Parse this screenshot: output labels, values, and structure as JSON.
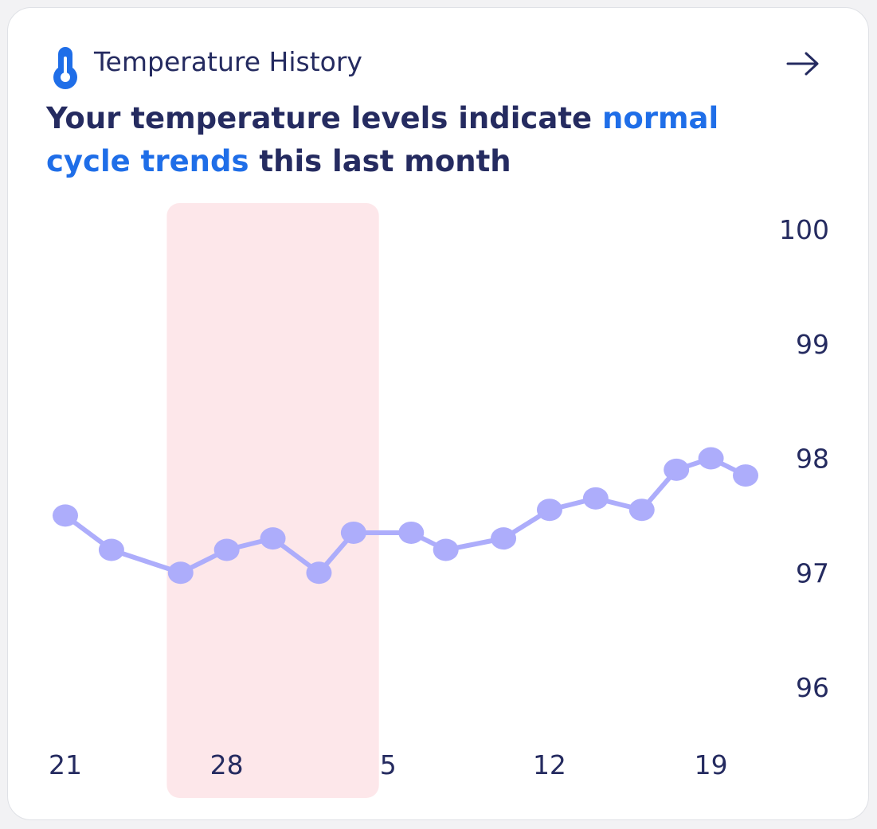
{
  "header": {
    "icon": "thermometer-icon",
    "title": "Temperature History",
    "open_icon": "arrow-right-icon"
  },
  "headline": {
    "part1": "Your temperature levels indicate ",
    "accent": "normal cycle trends",
    "part2": " this last month"
  },
  "colors": {
    "text": "#252b60",
    "accent": "#1f6ee8",
    "series": "#adadfb",
    "highlight": "#fde7ea"
  },
  "chart_data": {
    "type": "line",
    "x_tick_labels": [
      "21",
      "28",
      "5",
      "12",
      "19"
    ],
    "y_ticks": [
      100,
      99,
      98,
      97,
      96
    ],
    "ylim": [
      96,
      100
    ],
    "grid": false,
    "y_axis_side": "right",
    "series": [
      {
        "values": [
          97.5,
          97.2,
          97.0,
          97.2,
          97.3,
          97.0,
          97.35,
          97.35,
          97.2,
          97.3,
          97.55,
          97.65,
          97.55,
          97.9,
          98.0,
          97.85
        ]
      }
    ],
    "highlight_band": {
      "from_day": 4.4,
      "to_day": 13.6
    },
    "x_days": [
      0,
      2,
      5,
      7,
      9,
      11,
      12.5,
      15,
      16.5,
      19,
      21,
      23,
      25,
      26.5,
      28,
      29.5
    ],
    "x_tick_days": [
      0,
      7,
      14,
      21,
      28
    ]
  }
}
